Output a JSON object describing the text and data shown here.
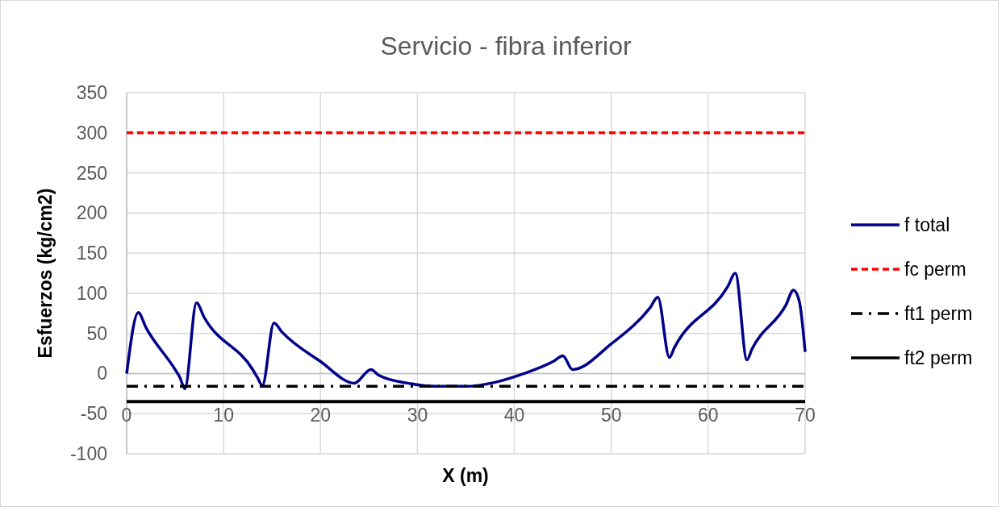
{
  "chart_data": {
    "type": "line",
    "title": "Servicio - fibra inferior",
    "xlabel": "X (m)",
    "ylabel": "Esfuerzos (kg/cm2)",
    "xlim": [
      0,
      70
    ],
    "xticks": [
      0,
      10,
      20,
      30,
      40,
      50,
      60,
      70
    ],
    "ylim": [
      -100,
      350
    ],
    "yticks": [
      -100,
      -50,
      0,
      50,
      100,
      150,
      200,
      250,
      300,
      350
    ],
    "grid": true,
    "legend": "right",
    "series": [
      {
        "name": "f total",
        "color": "#00008b",
        "line_style": "solid",
        "x": [
          0,
          1.2,
          2,
          5,
          5.5,
          6,
          7.2,
          8,
          13,
          13.5,
          14,
          15.2,
          16,
          20,
          23.5,
          25.2,
          26,
          29,
          32,
          35,
          38,
          41,
          44,
          45,
          46,
          50,
          54,
          54.8,
          56,
          56.5,
          62,
          62.8,
          64,
          64.5,
          68,
          68.8,
          69.4,
          70
        ],
        "values": [
          0,
          76,
          57,
          5,
          -5,
          -19,
          88,
          70,
          5,
          -5,
          -15,
          63,
          52,
          15,
          -12,
          5,
          -2,
          -12,
          -16,
          -16,
          -11,
          0,
          15,
          22,
          5,
          37,
          82,
          95,
          20,
          32,
          108,
          125,
          17,
          30,
          85,
          104,
          90,
          27
        ]
      },
      {
        "name": "fc perm",
        "color": "#ff0000",
        "line_style": "dashed",
        "x": [
          0,
          70
        ],
        "values": [
          300,
          300
        ]
      },
      {
        "name": "ft1 perm",
        "color": "#000000",
        "line_style": "dashdot",
        "x": [
          0,
          70
        ],
        "values": [
          -16,
          -16
        ]
      },
      {
        "name": "ft2 perm",
        "color": "#000000",
        "line_style": "solid",
        "x": [
          0,
          70
        ],
        "values": [
          -35,
          -35
        ]
      }
    ]
  }
}
